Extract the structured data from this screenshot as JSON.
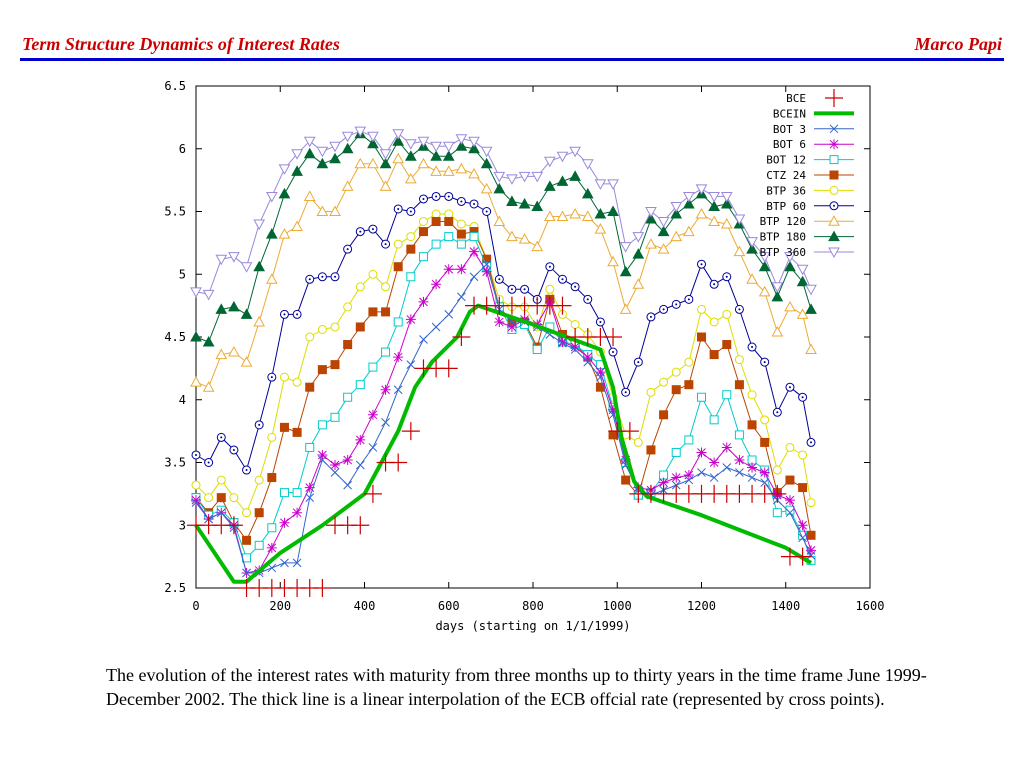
{
  "header": {
    "title": "Term Structure Dynamics of Interest Rates",
    "author": "Marco Papi",
    "color": "#cc0000",
    "rule_color": "#0000cc"
  },
  "caption": "The evolution of the interest rates with maturity from three months up to thirty years in the time frame June 1999-December 2002. The thick line is a linear interpolation of the ECB offcial rate (represented by cross points).",
  "chart_data": {
    "type": "line",
    "title": "",
    "xlabel": "days (starting on 1/1/1999)",
    "ylabel": "",
    "xlim": [
      0,
      1600
    ],
    "ylim": [
      2.5,
      6.5
    ],
    "xticks": [
      "0",
      "200",
      "400",
      "600",
      "800",
      "1000",
      "1200",
      "1400",
      "1600"
    ],
    "yticks": [
      "2.5",
      "3",
      "3.5",
      "4",
      "4.5",
      "5",
      "5.5",
      "6",
      "6.5"
    ],
    "grid": false,
    "legend_position": "top-right",
    "x": [
      0,
      30,
      60,
      90,
      120,
      150,
      180,
      210,
      240,
      270,
      300,
      330,
      360,
      390,
      420,
      450,
      480,
      510,
      540,
      570,
      600,
      630,
      660,
      690,
      720,
      750,
      780,
      810,
      840,
      870,
      900,
      930,
      960,
      990,
      1020,
      1050,
      1080,
      1110,
      1140,
      1170,
      1200,
      1230,
      1260,
      1290,
      1320,
      1350,
      1380,
      1410,
      1440,
      1460
    ],
    "series": [
      {
        "name": "BCE",
        "color": "#cc0000",
        "marker": "plus",
        "points": [
          [
            0,
            3.0
          ],
          [
            30,
            3.0
          ],
          [
            60,
            3.0
          ],
          [
            90,
            3.0
          ],
          [
            120,
            2.5
          ],
          [
            150,
            2.5
          ],
          [
            180,
            2.5
          ],
          [
            210,
            2.5
          ],
          [
            240,
            2.5
          ],
          [
            270,
            2.5
          ],
          [
            300,
            2.5
          ],
          [
            330,
            3.0
          ],
          [
            360,
            3.0
          ],
          [
            390,
            3.0
          ],
          [
            420,
            3.25
          ],
          [
            450,
            3.5
          ],
          [
            480,
            3.5
          ],
          [
            510,
            3.75
          ],
          [
            540,
            4.25
          ],
          [
            570,
            4.25
          ],
          [
            600,
            4.25
          ],
          [
            630,
            4.5
          ],
          [
            660,
            4.75
          ],
          [
            690,
            4.75
          ],
          [
            720,
            4.75
          ],
          [
            750,
            4.75
          ],
          [
            780,
            4.75
          ],
          [
            810,
            4.75
          ],
          [
            840,
            4.75
          ],
          [
            870,
            4.75
          ],
          [
            900,
            4.5
          ],
          [
            930,
            4.5
          ],
          [
            960,
            4.5
          ],
          [
            990,
            4.5
          ],
          [
            1000,
            3.75
          ],
          [
            1030,
            3.75
          ],
          [
            1050,
            3.25
          ],
          [
            1080,
            3.25
          ],
          [
            1110,
            3.25
          ],
          [
            1140,
            3.25
          ],
          [
            1170,
            3.25
          ],
          [
            1200,
            3.25
          ],
          [
            1230,
            3.25
          ],
          [
            1260,
            3.25
          ],
          [
            1290,
            3.25
          ],
          [
            1320,
            3.25
          ],
          [
            1350,
            3.25
          ],
          [
            1380,
            3.25
          ],
          [
            1410,
            2.75
          ],
          [
            1440,
            2.75
          ]
        ]
      },
      {
        "name": "BCEIN",
        "color": "#00bb00",
        "marker": "none",
        "points": [
          [
            0,
            3.0
          ],
          [
            90,
            2.55
          ],
          [
            120,
            2.55
          ],
          [
            200,
            2.78
          ],
          [
            300,
            3.0
          ],
          [
            400,
            3.25
          ],
          [
            440,
            3.5
          ],
          [
            480,
            3.75
          ],
          [
            520,
            4.1
          ],
          [
            560,
            4.3
          ],
          [
            620,
            4.5
          ],
          [
            650,
            4.7
          ],
          [
            670,
            4.75
          ],
          [
            800,
            4.6
          ],
          [
            960,
            4.4
          ],
          [
            990,
            4.1
          ],
          [
            1010,
            3.7
          ],
          [
            1040,
            3.35
          ],
          [
            1070,
            3.23
          ],
          [
            1200,
            3.08
          ],
          [
            1300,
            2.95
          ],
          [
            1400,
            2.82
          ],
          [
            1460,
            2.7
          ]
        ]
      },
      {
        "name": "BOT 3",
        "color": "#3366cc",
        "marker": "cross",
        "y": [
          3.18,
          3.05,
          3.1,
          2.98,
          2.62,
          2.62,
          2.66,
          2.7,
          2.7,
          3.22,
          3.52,
          3.42,
          3.32,
          3.48,
          3.62,
          3.82,
          4.08,
          4.28,
          4.48,
          4.58,
          4.68,
          4.82,
          4.98,
          5.08,
          4.72,
          4.62,
          4.62,
          4.58,
          4.52,
          4.45,
          4.4,
          4.3,
          4.18,
          3.88,
          3.48,
          3.28,
          3.24,
          3.28,
          3.32,
          3.36,
          3.42,
          3.38,
          3.46,
          3.42,
          3.38,
          3.34,
          3.2,
          3.1,
          2.9,
          2.76
        ]
      },
      {
        "name": "BOT 6",
        "color": "#cc00cc",
        "marker": "star",
        "y": [
          3.2,
          3.05,
          3.1,
          3.0,
          2.62,
          2.64,
          2.82,
          3.02,
          3.1,
          3.3,
          3.56,
          3.48,
          3.52,
          3.68,
          3.88,
          4.08,
          4.34,
          4.64,
          4.78,
          4.92,
          5.04,
          5.04,
          5.18,
          5.02,
          4.62,
          4.58,
          4.64,
          4.6,
          4.78,
          4.46,
          4.42,
          4.34,
          4.22,
          3.92,
          3.52,
          3.3,
          3.28,
          3.34,
          3.38,
          3.4,
          3.58,
          3.5,
          3.62,
          3.52,
          3.46,
          3.42,
          3.24,
          3.2,
          3.0,
          2.8
        ]
      },
      {
        "name": "BOT 12",
        "color": "#00cccc",
        "marker": "square",
        "y": [
          3.22,
          3.08,
          3.12,
          3.02,
          2.74,
          2.84,
          2.98,
          3.26,
          3.26,
          3.62,
          3.8,
          3.86,
          4.02,
          4.12,
          4.26,
          4.38,
          4.62,
          4.98,
          5.14,
          5.24,
          5.3,
          5.24,
          5.3,
          5.06,
          4.74,
          4.56,
          4.6,
          4.4,
          4.58,
          4.46,
          4.44,
          4.36,
          4.28,
          3.94,
          3.5,
          3.24,
          3.26,
          3.4,
          3.58,
          3.68,
          4.02,
          3.84,
          4.04,
          3.72,
          3.52,
          3.44,
          3.1,
          3.12,
          2.92,
          2.72
        ]
      },
      {
        "name": "CTZ 24",
        "color": "#bb4400",
        "marker": "filled-square",
        "y": [
          3.22,
          3.1,
          3.22,
          3.02,
          2.88,
          3.1,
          3.38,
          3.78,
          3.74,
          4.1,
          4.24,
          4.28,
          4.44,
          4.58,
          4.7,
          4.7,
          5.06,
          5.2,
          5.34,
          5.42,
          5.42,
          5.32,
          5.34,
          5.12,
          4.74,
          4.62,
          4.62,
          4.42,
          4.8,
          4.52,
          4.44,
          4.34,
          4.1,
          3.72,
          3.36,
          3.24,
          3.6,
          3.88,
          4.08,
          4.12,
          4.5,
          4.36,
          4.44,
          4.12,
          3.8,
          3.66,
          3.26,
          3.36,
          3.3,
          2.92
        ]
      },
      {
        "name": "BTP 36",
        "color": "#dddd00",
        "marker": "circle",
        "y": [
          3.32,
          3.22,
          3.36,
          3.22,
          3.1,
          3.36,
          3.7,
          4.18,
          4.14,
          4.5,
          4.56,
          4.58,
          4.74,
          4.9,
          5.0,
          4.9,
          5.24,
          5.3,
          5.42,
          5.48,
          5.48,
          5.4,
          5.38,
          5.12,
          4.8,
          4.74,
          4.74,
          4.58,
          4.88,
          4.68,
          4.6,
          4.52,
          4.38,
          4.02,
          3.72,
          3.66,
          4.06,
          4.14,
          4.22,
          4.3,
          4.72,
          4.62,
          4.68,
          4.32,
          4.04,
          3.84,
          3.44,
          3.62,
          3.56,
          3.18
        ]
      },
      {
        "name": "BTP 60",
        "color": "#000099",
        "marker": "circle-dot",
        "y": [
          3.56,
          3.5,
          3.7,
          3.6,
          3.44,
          3.8,
          4.18,
          4.68,
          4.68,
          4.96,
          4.98,
          4.98,
          5.2,
          5.34,
          5.36,
          5.24,
          5.52,
          5.5,
          5.6,
          5.62,
          5.62,
          5.58,
          5.56,
          5.5,
          4.96,
          4.88,
          4.88,
          4.8,
          5.06,
          4.96,
          4.9,
          4.8,
          4.62,
          4.38,
          4.06,
          4.3,
          4.66,
          4.72,
          4.76,
          4.8,
          5.08,
          4.92,
          4.98,
          4.72,
          4.42,
          4.3,
          3.9,
          4.1,
          4.02,
          3.66
        ]
      },
      {
        "name": "BTP 120",
        "color": "#eeaa33",
        "marker": "triangle",
        "y": [
          4.14,
          4.1,
          4.36,
          4.38,
          4.3,
          4.62,
          4.96,
          5.32,
          5.38,
          5.62,
          5.5,
          5.5,
          5.7,
          5.88,
          5.88,
          5.7,
          5.92,
          5.76,
          5.88,
          5.82,
          5.82,
          5.84,
          5.8,
          5.68,
          5.42,
          5.3,
          5.28,
          5.22,
          5.46,
          5.46,
          5.48,
          5.46,
          5.36,
          5.1,
          4.72,
          4.92,
          5.24,
          5.2,
          5.3,
          5.34,
          5.48,
          5.42,
          5.4,
          5.18,
          4.96,
          4.86,
          4.54,
          4.74,
          4.68,
          4.4
        ]
      },
      {
        "name": "BTP 180",
        "color": "#006633",
        "marker": "filled-triangle",
        "y": [
          4.5,
          4.46,
          4.72,
          4.74,
          4.68,
          5.06,
          5.32,
          5.64,
          5.82,
          5.96,
          5.88,
          5.92,
          6.0,
          6.12,
          6.04,
          5.88,
          6.06,
          5.94,
          6.02,
          5.94,
          5.94,
          6.02,
          6.0,
          5.88,
          5.68,
          5.58,
          5.56,
          5.54,
          5.7,
          5.74,
          5.78,
          5.64,
          5.48,
          5.5,
          5.02,
          5.16,
          5.44,
          5.34,
          5.48,
          5.56,
          5.64,
          5.54,
          5.56,
          5.4,
          5.2,
          5.06,
          4.82,
          5.06,
          4.94,
          4.72
        ]
      },
      {
        "name": "BTP 360",
        "color": "#9988dd",
        "marker": "inverted-triangle",
        "y": [
          4.86,
          4.84,
          5.12,
          5.14,
          5.06,
          5.4,
          5.62,
          5.84,
          5.96,
          6.06,
          5.98,
          6.02,
          6.1,
          6.14,
          6.1,
          5.96,
          6.12,
          6.04,
          6.06,
          6.02,
          6.02,
          6.08,
          6.06,
          5.98,
          5.78,
          5.76,
          5.78,
          5.78,
          5.9,
          5.94,
          5.98,
          5.88,
          5.72,
          5.72,
          5.22,
          5.3,
          5.5,
          5.42,
          5.54,
          5.62,
          5.68,
          5.62,
          5.62,
          5.44,
          5.26,
          5.14,
          4.9,
          5.14,
          5.04,
          4.88
        ]
      }
    ]
  }
}
